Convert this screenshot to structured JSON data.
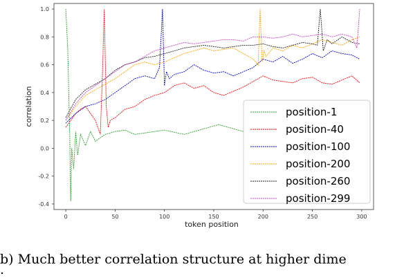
{
  "caption": {
    "text": "b) Much better correlation structure at higher dime",
    "tail": "."
  },
  "chart_data": {
    "type": "line",
    "xlabel": "token position",
    "ylabel": "correlation",
    "xlim": [
      -12,
      312
    ],
    "ylim": [
      -0.44,
      1.04
    ],
    "xticks": [
      0,
      50,
      100,
      150,
      200,
      250,
      300
    ],
    "yticks": [
      -0.4,
      -0.2,
      0.0,
      0.2,
      0.4,
      0.6,
      0.8,
      1.0
    ],
    "ytick_labels": [
      "-0.4",
      "-0.2",
      "0.0",
      "0.2",
      "0.4",
      "0.6",
      "0.8",
      "1.0"
    ],
    "grid": false,
    "legend_position": "lower-right",
    "series": [
      {
        "name": "position-1",
        "color": "#2ca02c",
        "x": [
          0,
          2,
          4,
          5,
          6,
          8,
          10,
          12,
          15,
          20,
          25,
          30,
          40,
          50,
          60,
          70,
          80,
          90,
          100,
          120,
          140,
          150,
          155,
          160,
          170,
          180,
          185
        ],
        "y": [
          1.0,
          0.7,
          0.1,
          -0.38,
          0.0,
          -0.15,
          0.12,
          -0.05,
          0.1,
          0.02,
          0.12,
          0.05,
          0.1,
          0.12,
          0.13,
          0.1,
          0.11,
          0.12,
          0.13,
          0.1,
          0.14,
          0.16,
          0.17,
          0.16,
          0.14,
          0.12,
          0.11
        ]
      },
      {
        "name": "position-40",
        "color": "#ff0000",
        "x": [
          0,
          5,
          10,
          15,
          20,
          25,
          30,
          35,
          37,
          39,
          41,
          43,
          45,
          50,
          60,
          70,
          80,
          90,
          100,
          110,
          120,
          130,
          140,
          150,
          160,
          170,
          180,
          190,
          200,
          210,
          220,
          230,
          240,
          250,
          260,
          270,
          280,
          290,
          298
        ],
        "y": [
          0.15,
          0.2,
          0.25,
          0.28,
          0.3,
          0.25,
          0.2,
          0.1,
          0.5,
          1.0,
          0.3,
          0.15,
          0.2,
          0.22,
          0.28,
          0.3,
          0.35,
          0.38,
          0.4,
          0.45,
          0.47,
          0.43,
          0.45,
          0.4,
          0.38,
          0.41,
          0.44,
          0.48,
          0.52,
          0.49,
          0.48,
          0.47,
          0.5,
          0.51,
          0.47,
          0.46,
          0.49,
          0.52,
          0.47
        ]
      },
      {
        "name": "position-100",
        "color": "#0000cc",
        "x": [
          0,
          10,
          20,
          30,
          40,
          50,
          60,
          70,
          80,
          90,
          95,
          98,
          100,
          102,
          105,
          110,
          120,
          130,
          140,
          150,
          160,
          170,
          180,
          190,
          200,
          210,
          220,
          230,
          240,
          250,
          260,
          270,
          280,
          290,
          298
        ],
        "y": [
          0.18,
          0.25,
          0.3,
          0.32,
          0.35,
          0.4,
          0.45,
          0.5,
          0.52,
          0.5,
          0.58,
          1.0,
          0.45,
          0.55,
          0.5,
          0.53,
          0.55,
          0.6,
          0.56,
          0.54,
          0.55,
          0.52,
          0.55,
          0.58,
          0.64,
          0.62,
          0.66,
          0.61,
          0.64,
          0.68,
          0.65,
          0.7,
          0.68,
          0.67,
          0.64
        ]
      },
      {
        "name": "position-200",
        "color": "#ffa500",
        "x": [
          0,
          10,
          20,
          30,
          40,
          50,
          60,
          70,
          80,
          90,
          100,
          110,
          120,
          130,
          140,
          150,
          160,
          170,
          180,
          190,
          195,
          197,
          199,
          201,
          203,
          210,
          220,
          230,
          240,
          250,
          260,
          270,
          280,
          290,
          298
        ],
        "y": [
          0.2,
          0.3,
          0.38,
          0.42,
          0.46,
          0.5,
          0.55,
          0.6,
          0.62,
          0.6,
          0.62,
          0.65,
          0.68,
          0.7,
          0.72,
          0.7,
          0.71,
          0.72,
          0.68,
          0.64,
          0.6,
          1.0,
          0.62,
          0.7,
          0.66,
          0.72,
          0.7,
          0.74,
          0.72,
          0.75,
          0.78,
          0.76,
          0.74,
          0.78,
          0.8
        ]
      },
      {
        "name": "position-260",
        "color": "#222222",
        "x": [
          0,
          10,
          20,
          30,
          40,
          50,
          60,
          70,
          80,
          90,
          100,
          110,
          120,
          130,
          140,
          150,
          160,
          170,
          180,
          190,
          200,
          210,
          220,
          230,
          240,
          250,
          255,
          258,
          261,
          265,
          270,
          280,
          290,
          298
        ],
        "y": [
          0.22,
          0.35,
          0.42,
          0.46,
          0.5,
          0.56,
          0.6,
          0.62,
          0.65,
          0.66,
          0.68,
          0.7,
          0.72,
          0.73,
          0.74,
          0.73,
          0.72,
          0.73,
          0.74,
          0.74,
          0.75,
          0.73,
          0.72,
          0.74,
          0.76,
          0.75,
          0.74,
          1.0,
          0.7,
          0.78,
          0.75,
          0.8,
          0.76,
          0.75
        ]
      },
      {
        "name": "position-299",
        "color": "#cc44cc",
        "x": [
          0,
          10,
          20,
          30,
          40,
          50,
          60,
          70,
          80,
          90,
          100,
          110,
          120,
          130,
          140,
          150,
          160,
          170,
          180,
          190,
          200,
          210,
          220,
          230,
          240,
          250,
          260,
          270,
          280,
          290,
          295,
          298
        ],
        "y": [
          0.2,
          0.32,
          0.4,
          0.45,
          0.5,
          0.55,
          0.6,
          0.62,
          0.66,
          0.7,
          0.72,
          0.74,
          0.76,
          0.75,
          0.76,
          0.77,
          0.78,
          0.78,
          0.77,
          0.8,
          0.8,
          0.79,
          0.8,
          0.82,
          0.8,
          0.81,
          0.82,
          0.8,
          0.82,
          0.8,
          0.72,
          1.0
        ]
      }
    ]
  }
}
